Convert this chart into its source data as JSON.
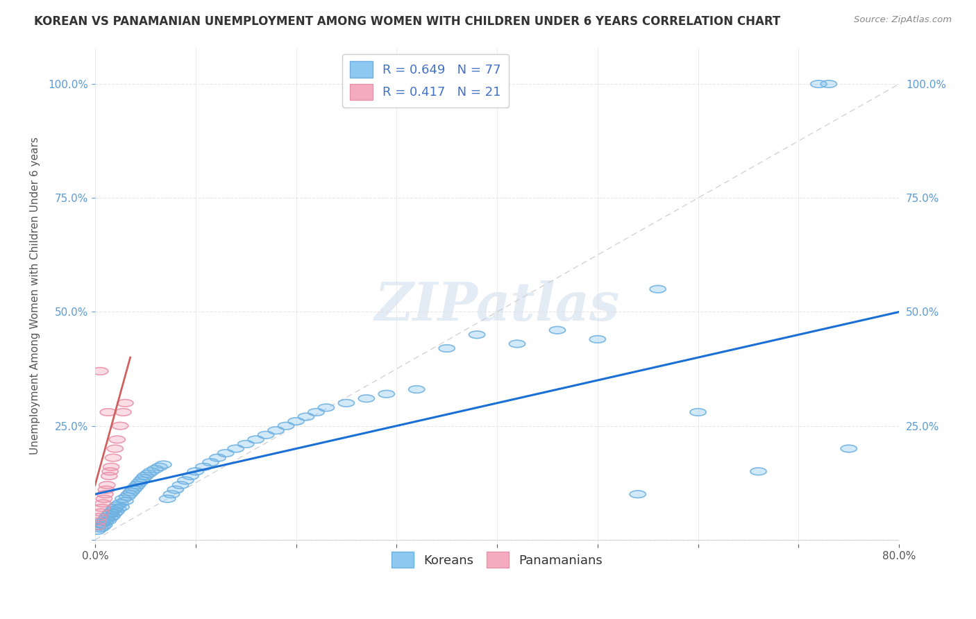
{
  "title": "KOREAN VS PANAMANIAN UNEMPLOYMENT AMONG WOMEN WITH CHILDREN UNDER 6 YEARS CORRELATION CHART",
  "source": "Source: ZipAtlas.com",
  "ylabel_label": "Unemployment Among Women with Children Under 6 years",
  "xlim": [
    0.0,
    0.8
  ],
  "ylim": [
    -0.01,
    1.08
  ],
  "xticks": [
    0.0,
    0.1,
    0.2,
    0.3,
    0.4,
    0.5,
    0.6,
    0.7,
    0.8
  ],
  "yticks": [
    0.0,
    0.25,
    0.5,
    0.75,
    1.0
  ],
  "ytick_labels": [
    "0.0%",
    "25.0%",
    "50.0%",
    "75.0%",
    "100.0%"
  ],
  "xtick_labels_left": "0.0%",
  "xtick_labels_right": "80.0%",
  "korean_color": "#8DC8F0",
  "korean_edge_color": "#6EB0E0",
  "panamanian_color": "#F4AABF",
  "panamanian_edge_color": "#E890A8",
  "korean_line_color": "#1A6FD4",
  "panamanian_line_color": "#D06060",
  "identity_line_color": "#C8C8C8",
  "R_korean": 0.649,
  "N_korean": 77,
  "R_panamanian": 0.417,
  "N_panamanian": 21,
  "watermark": "ZIPatlas",
  "background_color": "#FFFFFF",
  "grid_color": "#E0E0E0",
  "title_fontsize": 12,
  "label_fontsize": 11,
  "tick_fontsize": 11,
  "legend_fontsize": 13,
  "korean_x": [
    0.002,
    0.003,
    0.005,
    0.006,
    0.007,
    0.008,
    0.009,
    0.01,
    0.011,
    0.012,
    0.013,
    0.014,
    0.015,
    0.016,
    0.017,
    0.018,
    0.019,
    0.02,
    0.021,
    0.022,
    0.023,
    0.025,
    0.026,
    0.028,
    0.03,
    0.032,
    0.034,
    0.036,
    0.038,
    0.04,
    0.042,
    0.044,
    0.046,
    0.048,
    0.05,
    0.053,
    0.056,
    0.06,
    0.064,
    0.068,
    0.072,
    0.076,
    0.08,
    0.085,
    0.09,
    0.095,
    0.1,
    0.108,
    0.115,
    0.122,
    0.13,
    0.14,
    0.15,
    0.16,
    0.17,
    0.18,
    0.19,
    0.2,
    0.21,
    0.22,
    0.23,
    0.25,
    0.27,
    0.29,
    0.32,
    0.35,
    0.38,
    0.42,
    0.46,
    0.5,
    0.54,
    0.56,
    0.6,
    0.66,
    0.72,
    0.73,
    0.75
  ],
  "korean_y": [
    0.02,
    0.03,
    0.025,
    0.035,
    0.028,
    0.04,
    0.032,
    0.038,
    0.045,
    0.05,
    0.042,
    0.055,
    0.048,
    0.06,
    0.052,
    0.065,
    0.058,
    0.07,
    0.062,
    0.075,
    0.068,
    0.08,
    0.072,
    0.09,
    0.085,
    0.095,
    0.1,
    0.105,
    0.11,
    0.115,
    0.12,
    0.125,
    0.13,
    0.135,
    0.14,
    0.145,
    0.15,
    0.155,
    0.16,
    0.165,
    0.09,
    0.1,
    0.11,
    0.12,
    0.13,
    0.14,
    0.15,
    0.16,
    0.17,
    0.18,
    0.19,
    0.2,
    0.21,
    0.22,
    0.23,
    0.24,
    0.25,
    0.26,
    0.27,
    0.28,
    0.29,
    0.3,
    0.31,
    0.32,
    0.33,
    0.42,
    0.45,
    0.43,
    0.46,
    0.44,
    0.1,
    0.55,
    0.28,
    0.15,
    1.0,
    1.0,
    0.2
  ],
  "pana_x": [
    0.002,
    0.003,
    0.004,
    0.005,
    0.006,
    0.007,
    0.008,
    0.009,
    0.01,
    0.011,
    0.012,
    0.013,
    0.014,
    0.015,
    0.016,
    0.018,
    0.02,
    0.022,
    0.025,
    0.028,
    0.03
  ],
  "pana_y": [
    0.03,
    0.04,
    0.05,
    0.37,
    0.06,
    0.07,
    0.08,
    0.09,
    0.1,
    0.11,
    0.12,
    0.28,
    0.14,
    0.15,
    0.16,
    0.18,
    0.2,
    0.22,
    0.25,
    0.28,
    0.3
  ],
  "korean_line_x0": 0.0,
  "korean_line_y0": 0.1,
  "korean_line_x1": 0.8,
  "korean_line_y1": 0.5,
  "pana_line_x0": 0.0,
  "pana_line_y0": 0.12,
  "pana_line_x1": 0.035,
  "pana_line_y1": 0.4
}
